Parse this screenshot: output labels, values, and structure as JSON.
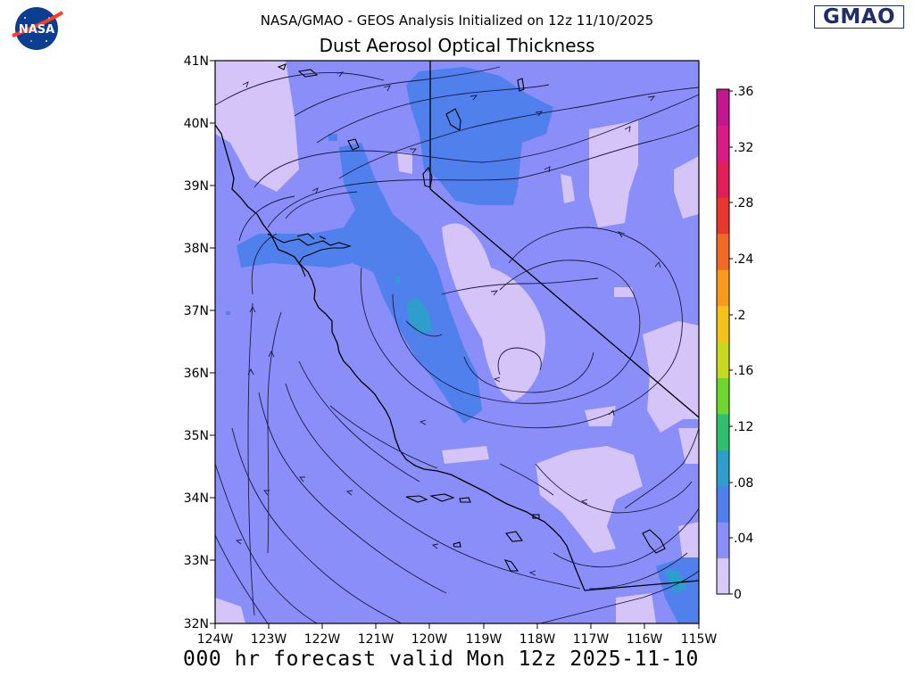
{
  "header": {
    "subtitle": "NASA/GMAO - GEOS Analysis Initialized on 12z 11/10/2025",
    "title": "Dust Aerosol Optical Thickness"
  },
  "logos": {
    "nasa": "NASA",
    "gmao": "GMAO"
  },
  "footer": {
    "forecast_text": "000 hr forecast valid Mon 12z 2025-11-10"
  },
  "map": {
    "lat_labels": [
      "41N",
      "40N",
      "39N",
      "38N",
      "37N",
      "36N",
      "35N",
      "34N",
      "33N",
      "32N"
    ],
    "lon_labels": [
      "124W",
      "123W",
      "122W",
      "121W",
      "120W",
      "119W",
      "118W",
      "117W",
      "116W",
      "115W"
    ],
    "lat_range": [
      32,
      41
    ],
    "lon_range": [
      -124,
      -115
    ],
    "field_colors": {
      "lowest": "#d4c4f8",
      "low": "#8a8ef8",
      "medium": "#4f80ec",
      "higher": "#2e9ecd"
    },
    "colorbar": {
      "labels": [
        "0",
        ".04",
        ".08",
        ".12",
        ".16",
        ".2",
        ".24",
        ".28",
        ".32",
        ".36"
      ],
      "min": 0,
      "max": 0.36,
      "colors": [
        "#d8c8f8",
        "#8a8ef8",
        "#4f80ec",
        "#2e9ecd",
        "#2fbf6f",
        "#6fd62f",
        "#c8d81e",
        "#f4c21b",
        "#f79a1d",
        "#f06a25",
        "#e8382e",
        "#e01f5a",
        "#d91b85",
        "#c2188f"
      ]
    }
  }
}
